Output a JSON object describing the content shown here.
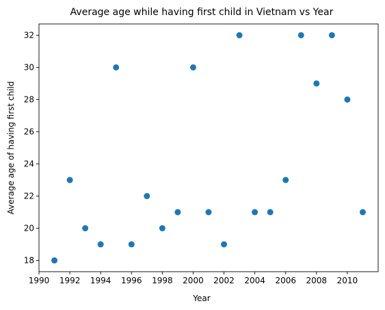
{
  "chart_data": {
    "type": "scatter",
    "title": "Average age while having first child in Vietnam vs Year",
    "xlabel": "Year",
    "ylabel": "Average age of having first child",
    "xlim": [
      1990,
      2012
    ],
    "ylim": [
      17.3,
      32.7
    ],
    "x_ticks": [
      1990,
      1992,
      1994,
      1996,
      1998,
      2000,
      2002,
      2004,
      2006,
      2008,
      2010
    ],
    "y_ticks": [
      18,
      20,
      22,
      24,
      26,
      28,
      30,
      32
    ],
    "grid": false,
    "marker_color": "#1f77b4",
    "points": [
      {
        "x": 1991,
        "y": 18
      },
      {
        "x": 1992,
        "y": 23
      },
      {
        "x": 1993,
        "y": 20
      },
      {
        "x": 1994,
        "y": 19
      },
      {
        "x": 1995,
        "y": 30
      },
      {
        "x": 1996,
        "y": 19
      },
      {
        "x": 1997,
        "y": 22
      },
      {
        "x": 1998,
        "y": 20
      },
      {
        "x": 1999,
        "y": 21
      },
      {
        "x": 2000,
        "y": 30
      },
      {
        "x": 2001,
        "y": 21
      },
      {
        "x": 2002,
        "y": 19
      },
      {
        "x": 2003,
        "y": 32
      },
      {
        "x": 2004,
        "y": 21
      },
      {
        "x": 2005,
        "y": 21
      },
      {
        "x": 2006,
        "y": 23
      },
      {
        "x": 2007,
        "y": 32
      },
      {
        "x": 2008,
        "y": 29
      },
      {
        "x": 2009,
        "y": 32
      },
      {
        "x": 2010,
        "y": 28
      },
      {
        "x": 2011,
        "y": 21
      }
    ]
  }
}
